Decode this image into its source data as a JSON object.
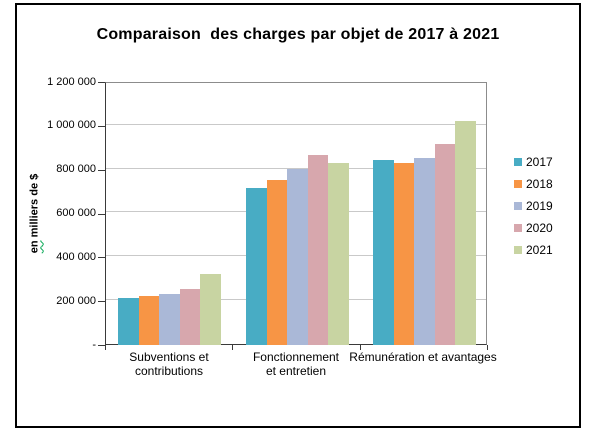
{
  "chart_data": {
    "type": "bar",
    "title": "Comparaison  des charges par objet de 2017 à 2021",
    "ylabel": "en milliers de $",
    "ylabel_parts": {
      "underlined": "en",
      "rest": " milliers de $"
    },
    "categories": [
      "Subventions et contributions",
      "Fonctionnement et entretien",
      "Rémunération et avantages"
    ],
    "categories_display": [
      [
        "Subventions et",
        "contributions"
      ],
      [
        "Fonctionnement",
        "et entretien"
      ],
      [
        "Rémunération et avantages"
      ]
    ],
    "series": [
      {
        "name": "2017",
        "color": "#48ACC4",
        "values": [
          215000,
          716000,
          845000
        ]
      },
      {
        "name": "2018",
        "color": "#F79545",
        "values": [
          224000,
          753000,
          830000
        ]
      },
      {
        "name": "2019",
        "color": "#AAB8D7",
        "values": [
          232000,
          801000,
          853000
        ]
      },
      {
        "name": "2020",
        "color": "#D7A7AD",
        "values": [
          254000,
          866000,
          918000
        ]
      },
      {
        "name": "2021",
        "color": "#C8D4A2",
        "values": [
          324000,
          830000,
          1024000
        ]
      }
    ],
    "ylim": [
      0,
      1200000
    ],
    "ytick_step": 200000,
    "ytick_labels_top_to_bottom": [
      "1 200 000",
      "1 000 000",
      "800 000",
      "600 000",
      "400 000",
      "200 000",
      "-"
    ],
    "grid": true,
    "legend_position": "right",
    "legend_entries": [
      "2017",
      "2018",
      "2019",
      "2020",
      "2021"
    ]
  }
}
